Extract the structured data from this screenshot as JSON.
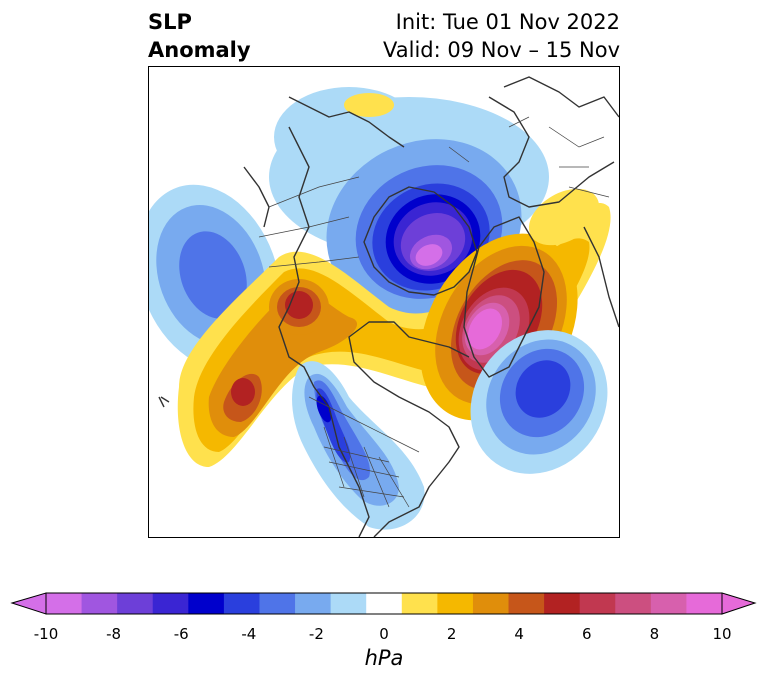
{
  "title": {
    "left_line1": "SLP",
    "left_line2": "Anomaly",
    "right_line1": "Init: Tue 01 Nov 2022",
    "right_line2": "Valid: 09 Nov – 15 Nov"
  },
  "colorbar": {
    "unit": "hPa",
    "tick_labels": [
      "-10",
      "-8",
      "-6",
      "-4",
      "-2",
      "0",
      "2",
      "4",
      "6",
      "8",
      "10"
    ],
    "colors": [
      "#d46fe8",
      "#a056e0",
      "#6d3fd8",
      "#3a25d3",
      "#0000cc",
      "#2a3fdd",
      "#4f74e8",
      "#78aaef",
      "#acdaf7",
      "#ffffff",
      "#ffe14d",
      "#f5b800",
      "#e08e0b",
      "#c6561a",
      "#b22222",
      "#c13850",
      "#cc4f80",
      "#d760ad",
      "#e66ad9"
    ]
  },
  "map": {
    "projection": "polar stereographic (North Pole)",
    "field": "SLP anomaly"
  }
}
